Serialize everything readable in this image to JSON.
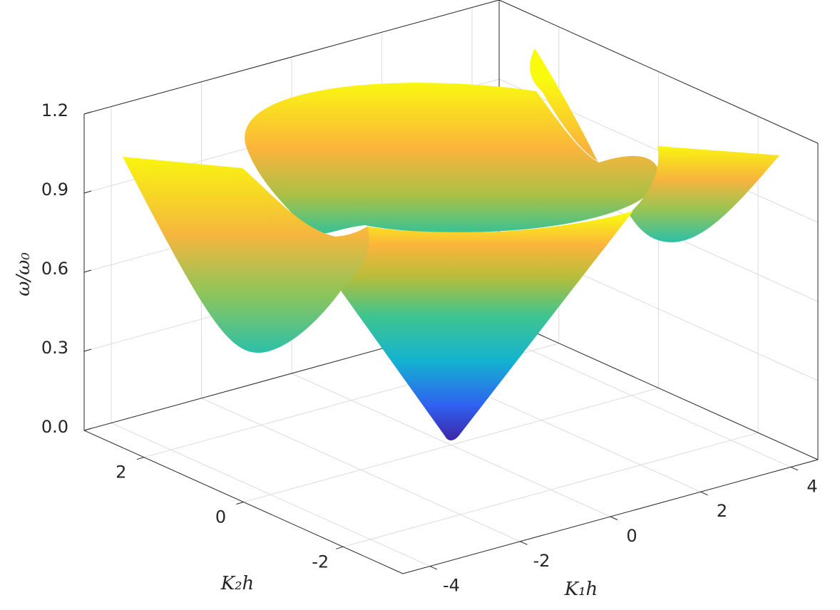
{
  "chart_data": {
    "type": "surface",
    "xlabel": "K₁h",
    "ylabel": "K₂h",
    "zlabel": "ω/ω₀",
    "xlim": [
      -4.6,
      4.6
    ],
    "ylim": [
      -3.2,
      3.2
    ],
    "zlim": [
      0,
      1.2
    ],
    "xticks": [
      -4,
      -2,
      0,
      2,
      4
    ],
    "yticks": [
      -2,
      0,
      2
    ],
    "zticks": [
      {
        "value": 0,
        "label": "0.0"
      },
      0.3,
      0.6,
      0.9,
      1.2
    ],
    "grid": true
  }
}
